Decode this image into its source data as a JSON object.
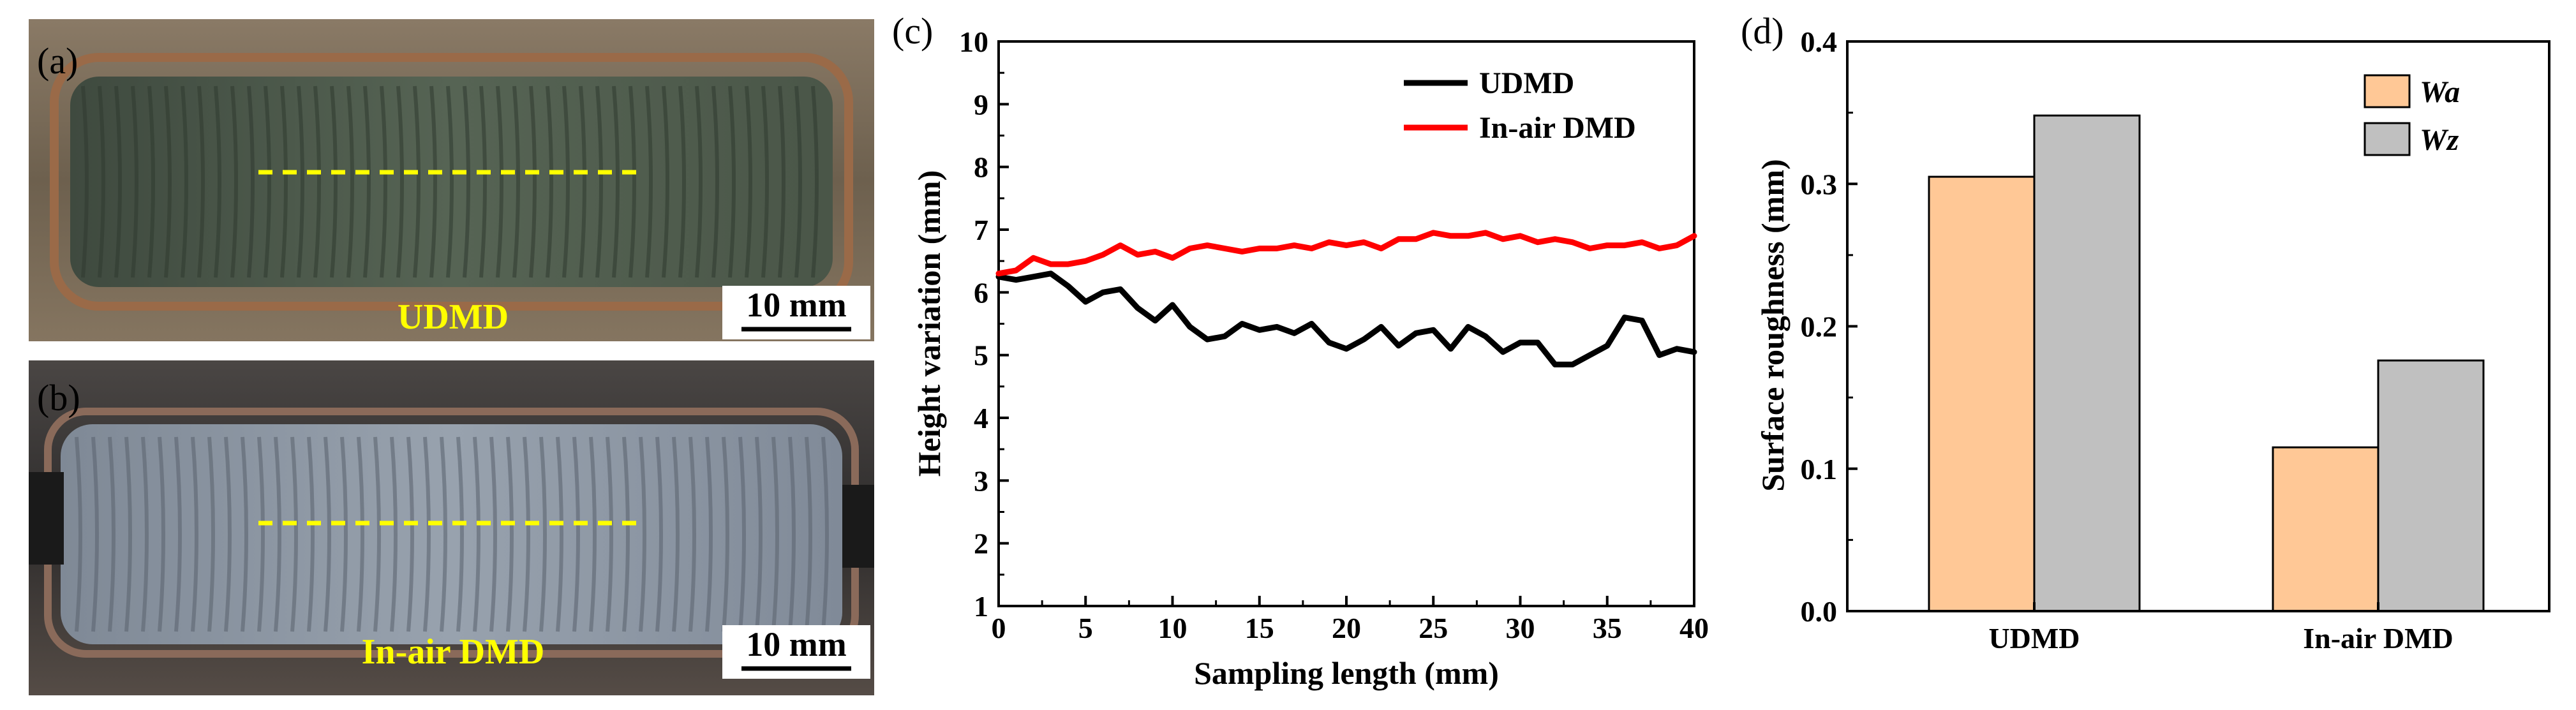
{
  "panels": {
    "a": {
      "label": "(a)",
      "sample_label": "UDMD",
      "scale_bar": "10 mm",
      "colors": {
        "substrate": "#6b5c48",
        "deposit": "#4d5a4c",
        "marker": "#ffff00",
        "text": "#ffff00"
      }
    },
    "b": {
      "label": "(b)",
      "sample_label": "In-air DMD",
      "scale_bar": "10 mm",
      "colors": {
        "substrate": "#3a3838",
        "deposit": "#8c96a3",
        "marker": "#ffff00",
        "text": "#ffff00"
      }
    },
    "c": {
      "label": "(c)"
    },
    "d": {
      "label": "(d)"
    }
  },
  "chart_data": [
    {
      "id": "c",
      "type": "line",
      "title": "",
      "xlabel": "Sampling length (mm)",
      "ylabel": "Height variation (mm)",
      "xlim": [
        0,
        40
      ],
      "ylim": [
        1,
        10
      ],
      "xticks": [
        0,
        5,
        10,
        15,
        20,
        25,
        30,
        35,
        40
      ],
      "yticks": [
        1,
        2,
        3,
        4,
        5,
        6,
        7,
        8,
        9,
        10
      ],
      "grid": false,
      "legend_position": "top-right",
      "series": [
        {
          "name": "UDMD",
          "color": "#000000",
          "x": [
            0,
            1,
            2,
            3,
            4,
            5,
            6,
            7,
            8,
            9,
            10,
            11,
            12,
            13,
            14,
            15,
            16,
            17,
            18,
            19,
            20,
            21,
            22,
            23,
            24,
            25,
            26,
            27,
            28,
            29,
            30,
            31,
            32,
            33,
            34,
            35,
            36,
            37,
            38,
            39,
            40
          ],
          "y": [
            6.25,
            6.2,
            6.25,
            6.3,
            6.1,
            5.85,
            6.0,
            6.05,
            5.75,
            5.55,
            5.8,
            5.45,
            5.25,
            5.3,
            5.5,
            5.4,
            5.45,
            5.35,
            5.5,
            5.2,
            5.1,
            5.25,
            5.45,
            5.15,
            5.35,
            5.4,
            5.1,
            5.45,
            5.3,
            5.05,
            5.2,
            5.2,
            4.85,
            4.85,
            5.0,
            5.15,
            5.6,
            5.55,
            5.0,
            5.1,
            5.05
          ]
        },
        {
          "name": "In-air DMD",
          "color": "#ff0000",
          "x": [
            0,
            1,
            2,
            3,
            4,
            5,
            6,
            7,
            8,
            9,
            10,
            11,
            12,
            13,
            14,
            15,
            16,
            17,
            18,
            19,
            20,
            21,
            22,
            23,
            24,
            25,
            26,
            27,
            28,
            29,
            30,
            31,
            32,
            33,
            34,
            35,
            36,
            37,
            38,
            39,
            40
          ],
          "y": [
            6.3,
            6.35,
            6.55,
            6.45,
            6.45,
            6.5,
            6.6,
            6.75,
            6.6,
            6.65,
            6.55,
            6.7,
            6.75,
            6.7,
            6.65,
            6.7,
            6.7,
            6.75,
            6.7,
            6.8,
            6.75,
            6.8,
            6.7,
            6.85,
            6.85,
            6.95,
            6.9,
            6.9,
            6.95,
            6.85,
            6.9,
            6.8,
            6.85,
            6.8,
            6.7,
            6.75,
            6.75,
            6.8,
            6.7,
            6.75,
            6.9
          ]
        }
      ]
    },
    {
      "id": "d",
      "type": "bar",
      "title": "",
      "xlabel": "",
      "ylabel": "Surface roughness (mm)",
      "ylim": [
        0.0,
        0.4
      ],
      "yticks": [
        0.0,
        0.1,
        0.2,
        0.3,
        0.4
      ],
      "ytick_labels": [
        "0.0",
        "0.1",
        "0.2",
        "0.3",
        "0.4"
      ],
      "grid": false,
      "legend_position": "top-right",
      "categories": [
        "UDMD",
        "In-air DMD"
      ],
      "series": [
        {
          "name": "Wa",
          "color": "#ffc896",
          "values": [
            0.305,
            0.115
          ]
        },
        {
          "name": "Wz",
          "color": "#c0c0c0",
          "values": [
            0.348,
            0.176
          ]
        }
      ]
    }
  ]
}
